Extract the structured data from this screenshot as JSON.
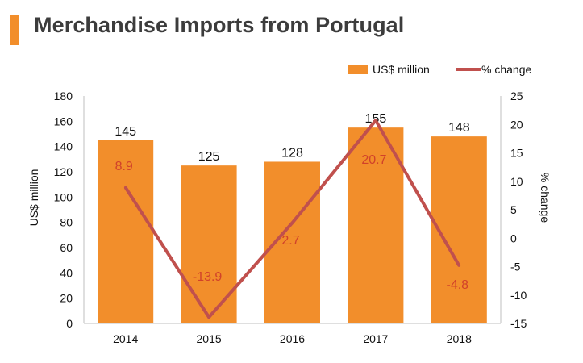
{
  "header": {
    "title": "Merchandise Imports from Portugal"
  },
  "chart_data": {
    "type": "bar",
    "categories": [
      "2014",
      "2015",
      "2016",
      "2017",
      "2018"
    ],
    "series": [
      {
        "name": "US$ million",
        "kind": "bar",
        "axis": "left",
        "color": "#f28e2b",
        "values": [
          145,
          125,
          128,
          155,
          148
        ],
        "labels": [
          "145",
          "125",
          "128",
          "155",
          "148"
        ]
      },
      {
        "name": "% change",
        "kind": "line",
        "axis": "right",
        "color": "#c0504d",
        "values": [
          8.9,
          -13.9,
          2.7,
          20.7,
          -4.8
        ],
        "labels": [
          "8.9",
          "-13.9",
          "2.7",
          "20.7",
          "-4.8"
        ]
      }
    ],
    "title": "Merchandise Imports from Portugal",
    "xlabel": "",
    "ylabel": "US$ million",
    "ylim": [
      0,
      180
    ],
    "yticks": [
      "0",
      "20",
      "40",
      "60",
      "80",
      "100",
      "120",
      "140",
      "160",
      "180"
    ],
    "y2label": "% change",
    "y2lim": [
      -15,
      25
    ],
    "y2ticks": [
      "-15",
      "-10",
      "-5",
      "0",
      "5",
      "10",
      "15",
      "20",
      "25"
    ],
    "grid": false,
    "legend": "top-right"
  }
}
